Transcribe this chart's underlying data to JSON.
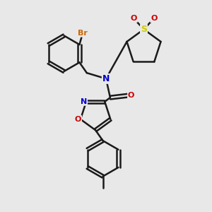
{
  "bg_color": "#e8e8e8",
  "bond_color": "#1a1a1a",
  "bond_width": 1.8,
  "atom_colors": {
    "Br": "#cc6600",
    "N": "#0000cc",
    "O": "#cc0000",
    "S": "#cccc00",
    "C": "#1a1a1a"
  },
  "font_size_large": 9,
  "font_size_small": 8
}
